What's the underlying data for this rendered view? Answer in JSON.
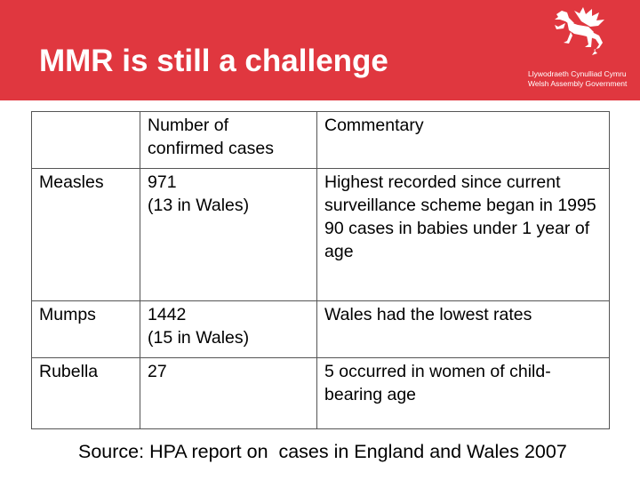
{
  "header": {
    "title": "MMR is still a challenge",
    "logo_line1": "Llywodraeth Cynulliad Cymru",
    "logo_line2": "Welsh Assembly Government",
    "logo_icon": "welsh-dragon-icon"
  },
  "table": {
    "headers": [
      "",
      "Number of\nconfirmed cases",
      "Commentary"
    ],
    "rows": [
      {
        "disease": "Measles",
        "cases": "971\n(13 in Wales)",
        "commentary": "Highest recorded since current surveillance scheme began in 1995\n90 cases in babies under 1 year of age"
      },
      {
        "disease": "Mumps",
        "cases": "1442\n(15 in Wales)",
        "commentary": "Wales had the lowest rates"
      },
      {
        "disease": "Rubella",
        "cases": "27",
        "commentary": "5 occurred in women of child-bearing age"
      }
    ]
  },
  "footer": {
    "source": "Source: HPA report on  cases in England and Wales 2007"
  },
  "colors": {
    "header_bg": "#e0373f",
    "title_text": "#ffffff",
    "table_border": "#555555"
  }
}
